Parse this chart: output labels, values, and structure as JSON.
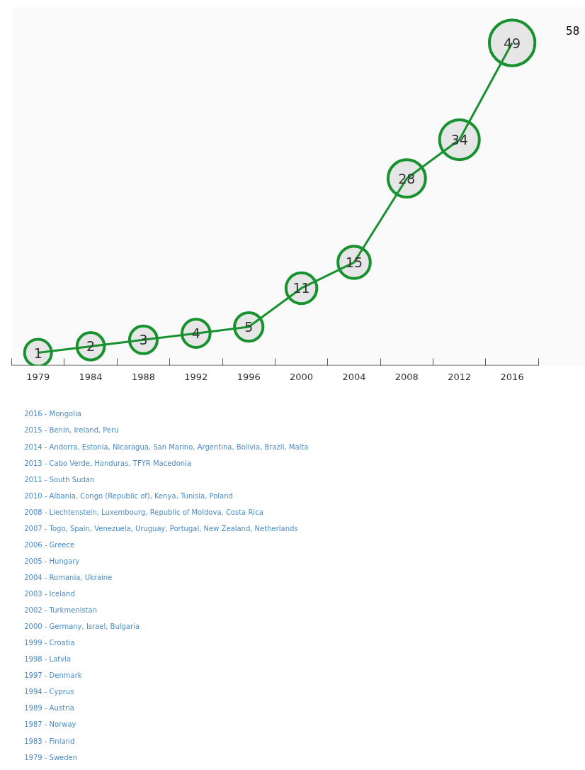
{
  "chart_data": {
    "type": "line",
    "categories": [
      "1979",
      "1984",
      "1988",
      "1992",
      "1996",
      "2000",
      "2004",
      "2008",
      "2012",
      "2016"
    ],
    "series": [
      {
        "color": "#17922f",
        "values": [
          1,
          2,
          3,
          4,
          5,
          11,
          15,
          28,
          34,
          49
        ]
      }
    ],
    "marker": "circle",
    "data_labels": true,
    "grid": false,
    "annotations": [
      "58",
      "2016 - Mongolia",
      "2015 - Benin, Ireland, Peru",
      "2014 - Andorra, Estonia, Nicaragua, San Marino, Argentina, Bolivia, Brazil, Malta",
      "2013 - Cabo Verde, Honduras, TFYR Macedonia",
      "2011 - South Sudan",
      "2010 - Albania, Congo (Republic of), Kenya, Tunisia, Poland",
      "2008 - Liechtenstein, Luxembourg, Republic of Moldova, Costa Rica",
      "2007 - Togo, Spain, Venezuela, Uruguay, Portugal, New Zealand, Netherlands",
      "2006 - Greece",
      "2005 - Hungary",
      "2004 - Romania, Ukraine",
      "2003 - Iceland",
      "2002 - Turkmenistan",
      "2000 - Germany, Israel, Bulgaria",
      "1999 - Croatia",
      "1998 - Latvia",
      "1997 - Denmark",
      "1994 - Cyprus",
      "1989 - Austria",
      "1987 - Norway",
      "1983 - Finland",
      "1979 - Sweden"
    ]
  }
}
